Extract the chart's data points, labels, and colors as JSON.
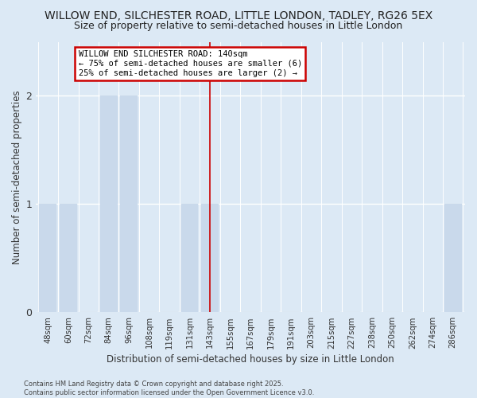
{
  "title": "WILLOW END, SILCHESTER ROAD, LITTLE LONDON, TADLEY, RG26 5EX",
  "subtitle": "Size of property relative to semi-detached houses in Little London",
  "xlabel": "Distribution of semi-detached houses by size in Little London",
  "ylabel": "Number of semi-detached properties",
  "categories": [
    "48sqm",
    "60sqm",
    "72sqm",
    "84sqm",
    "96sqm",
    "108sqm",
    "119sqm",
    "131sqm",
    "143sqm",
    "155sqm",
    "167sqm",
    "179sqm",
    "191sqm",
    "203sqm",
    "215sqm",
    "227sqm",
    "238sqm",
    "250sqm",
    "262sqm",
    "274sqm",
    "286sqm"
  ],
  "values": [
    1,
    1,
    0,
    2,
    2,
    0,
    0,
    1,
    1,
    0,
    0,
    0,
    0,
    0,
    0,
    0,
    0,
    0,
    0,
    0,
    1
  ],
  "bar_color": "#c9d9eb",
  "subject_bar_index": 8,
  "annotation_text": "WILLOW END SILCHESTER ROAD: 140sqm\n← 75% of semi-detached houses are smaller (6)\n25% of semi-detached houses are larger (2) →",
  "annotation_box_color": "#cc0000",
  "background_color": "#dce9f5",
  "footer": "Contains HM Land Registry data © Crown copyright and database right 2025.\nContains public sector information licensed under the Open Government Licence v3.0.",
  "ylim": [
    0,
    2.5
  ],
  "yticks": [
    0,
    1,
    2
  ],
  "title_fontsize": 10,
  "subtitle_fontsize": 9,
  "xlabel_fontsize": 8.5,
  "ylabel_fontsize": 8.5
}
